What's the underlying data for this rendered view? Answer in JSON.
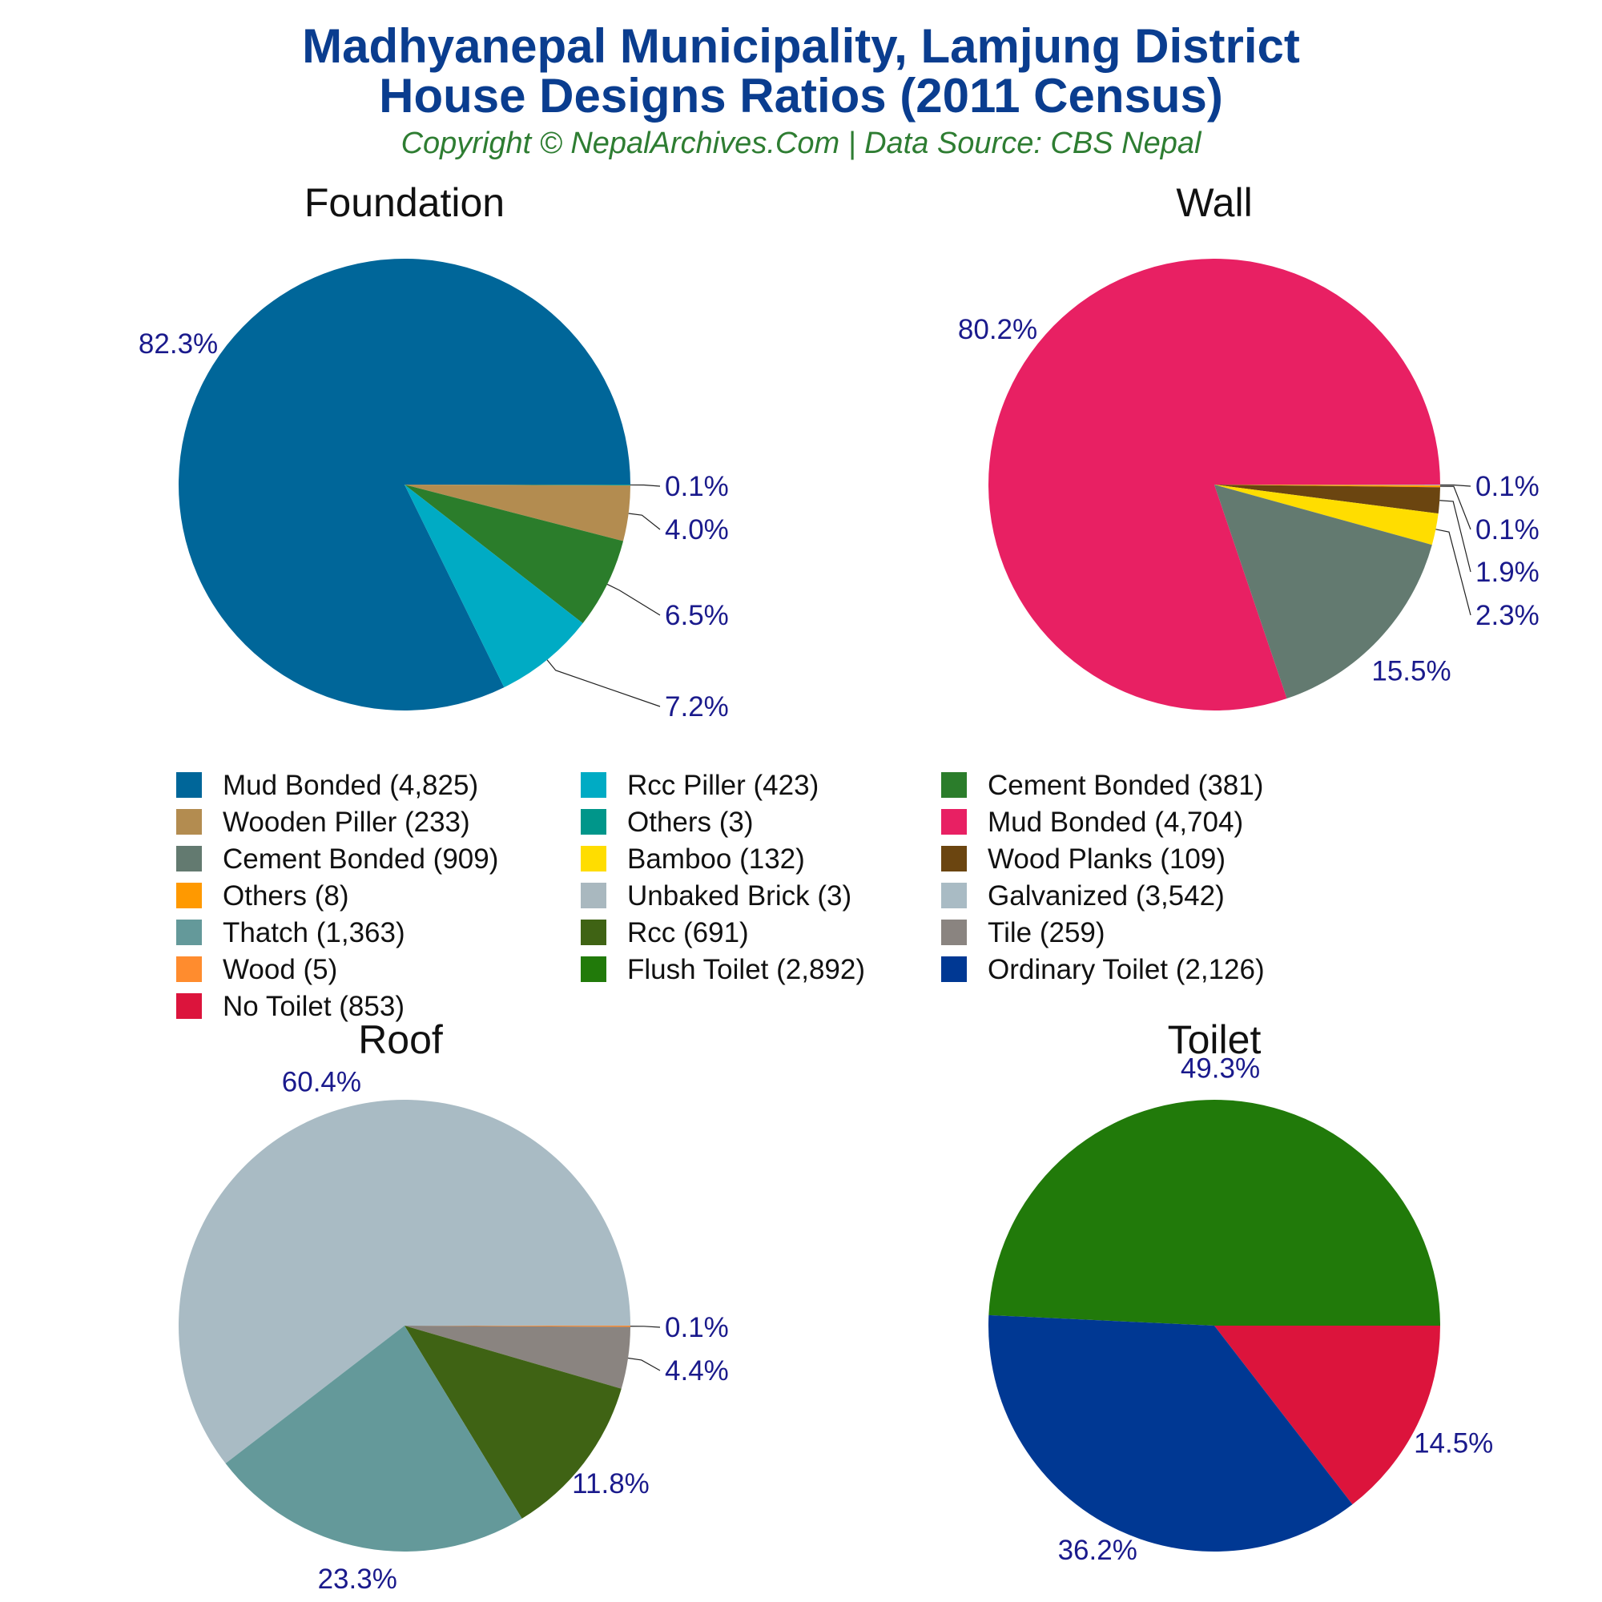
{
  "title_line1": "Madhyanepal Municipality, Lamjung District",
  "title_line2": "House Designs Ratios (2011 Census)",
  "subtitle": "Copyright © NepalArchives.Com | Data Source: CBS Nepal",
  "chart_data": [
    {
      "type": "pie",
      "title": "Foundation",
      "slices": [
        {
          "label": "Mud Bonded",
          "value": 4825,
          "color": "#006699",
          "pct": "82.3%"
        },
        {
          "label": "Others",
          "value": 3,
          "color": "#00968a",
          "pct": "0.1%"
        },
        {
          "label": "Wooden Piller",
          "value": 233,
          "color": "#b38c50",
          "pct": "4.0%"
        },
        {
          "label": "Cement Bonded",
          "value": 381,
          "color": "#2b7d2b",
          "pct": "6.5%"
        },
        {
          "label": "Rcc Piller",
          "value": 423,
          "color": "#00abc4",
          "pct": "7.2%"
        }
      ]
    },
    {
      "type": "pie",
      "title": "Wall",
      "slices": [
        {
          "label": "Mud Bonded",
          "value": 4704,
          "color": "#e82063",
          "pct": "80.2%"
        },
        {
          "label": "Unbaked Brick",
          "value": 3,
          "color": "#a9b8bf",
          "pct": "0.1%"
        },
        {
          "label": "Others",
          "value": 8,
          "color": "#ff9900",
          "pct": "0.1%"
        },
        {
          "label": "Wood Planks",
          "value": 109,
          "color": "#6b4510",
          "pct": "1.9%"
        },
        {
          "label": "Bamboo",
          "value": 132,
          "color": "#ffdd00",
          "pct": "2.3%"
        },
        {
          "label": "Cement Bonded",
          "value": 909,
          "color": "#637a70",
          "pct": "15.5%"
        }
      ]
    },
    {
      "type": "pie",
      "title": "Roof",
      "slices": [
        {
          "label": "Galvanized",
          "value": 3542,
          "color": "#a9bbc4",
          "pct": "60.4%"
        },
        {
          "label": "Wood",
          "value": 5,
          "color": "#ff8c2e",
          "pct": "0.1%"
        },
        {
          "label": "Tile",
          "value": 259,
          "color": "#8a8480",
          "pct": "4.4%"
        },
        {
          "label": "Rcc",
          "value": 691,
          "color": "#3f6314",
          "pct": "11.8%"
        },
        {
          "label": "Thatch",
          "value": 1363,
          "color": "#64999a",
          "pct": "23.3%"
        }
      ]
    },
    {
      "type": "pie",
      "title": "Toilet",
      "slices": [
        {
          "label": "Flush Toilet",
          "value": 2892,
          "color": "#217a0a",
          "pct": "49.3%"
        },
        {
          "label": "No Toilet",
          "value": 853,
          "color": "#dc143c",
          "pct": "14.5%"
        },
        {
          "label": "Ordinary Toilet",
          "value": 2126,
          "color": "#003893",
          "pct": "36.2%"
        }
      ]
    }
  ],
  "legend": [
    {
      "label": "Mud Bonded (4,825)",
      "color": "#006699"
    },
    {
      "label": "Rcc Piller (423)",
      "color": "#00abc4"
    },
    {
      "label": "Cement Bonded (381)",
      "color": "#2b7d2b"
    },
    {
      "label": "Wooden Piller (233)",
      "color": "#b38c50"
    },
    {
      "label": "Others (3)",
      "color": "#00968a"
    },
    {
      "label": "Mud Bonded (4,704)",
      "color": "#e82063"
    },
    {
      "label": "Cement Bonded (909)",
      "color": "#637a70"
    },
    {
      "label": "Bamboo (132)",
      "color": "#ffdd00"
    },
    {
      "label": "Wood Planks (109)",
      "color": "#6b4510"
    },
    {
      "label": "Others (8)",
      "color": "#ff9900"
    },
    {
      "label": "Unbaked Brick (3)",
      "color": "#a9b8bf"
    },
    {
      "label": "Galvanized (3,542)",
      "color": "#a9bbc4"
    },
    {
      "label": "Thatch (1,363)",
      "color": "#64999a"
    },
    {
      "label": "Rcc (691)",
      "color": "#3f6314"
    },
    {
      "label": "Tile (259)",
      "color": "#8a8480"
    },
    {
      "label": "Wood (5)",
      "color": "#ff8c2e"
    },
    {
      "label": "Flush Toilet (2,892)",
      "color": "#217a0a"
    },
    {
      "label": "Ordinary Toilet (2,126)",
      "color": "#003893"
    },
    {
      "label": "No Toilet (853)",
      "color": "#dc143c"
    }
  ],
  "colors": {
    "title": "#0a3d8f",
    "subtitle": "#2e7d32",
    "pct_label": "#1a1a8c"
  }
}
